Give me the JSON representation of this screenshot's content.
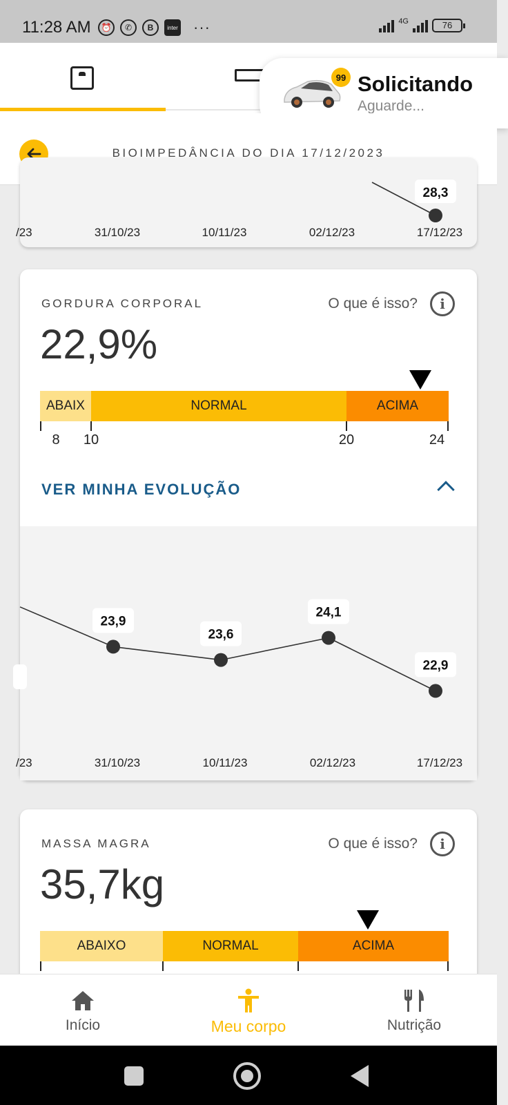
{
  "status_bar": {
    "time": "11:28 AM",
    "notif_icons": [
      "alarm-icon",
      "whatsapp-icon",
      "business-icon",
      "inter-icon"
    ],
    "inter_label": "inter",
    "more": "···",
    "network": "4G",
    "battery": "76"
  },
  "tabs": [
    {
      "icon": "scale-icon",
      "active": true
    },
    {
      "icon": "ruler-icon",
      "active": false
    }
  ],
  "ride_request": {
    "badge": "99",
    "title": "Solicitando",
    "subtitle": "Aguarde..."
  },
  "header": {
    "title": "BIOIMPEDÂNCIA DO DIA 17/12/2023"
  },
  "previous_chart": {
    "labels": [
      "/23",
      "31/10/23",
      "10/11/23",
      "02/12/23",
      "17/12/23"
    ],
    "last_value": "28,3"
  },
  "metrics": [
    {
      "label": "GORDURA CORPORAL",
      "help": "O que é isso?",
      "value": "22,9%",
      "ranges": [
        {
          "label": "ABAIX",
          "color": "#fde08a"
        },
        {
          "label": "NORMAL",
          "color": "#fbbc05"
        },
        {
          "label": "ACIMA",
          "color": "#fb8c00"
        }
      ],
      "scale": {
        "min": 8,
        "max": 24,
        "ticks": [
          "8",
          "10",
          "20",
          "24"
        ]
      },
      "current_value": 22.9,
      "evolution_link": "VER MINHA EVOLUÇÃO"
    },
    {
      "label": "MASSA MAGRA",
      "help": "O que é isso?",
      "value": "35,7kg",
      "ranges": [
        {
          "label": "ABAIXO",
          "color": "#fde08a"
        },
        {
          "label": "NORMAL",
          "color": "#fbbc05"
        },
        {
          "label": "ACIMA",
          "color": "#fb8c00"
        }
      ]
    }
  ],
  "chart_data": {
    "type": "line",
    "x": [
      "/23",
      "31/10/23",
      "10/11/23",
      "02/12/23",
      "17/12/23"
    ],
    "values": [
      null,
      23.9,
      23.6,
      24.1,
      22.9
    ],
    "point_labels": [
      "",
      "23,9",
      "23,6",
      "24,1",
      "22,9"
    ],
    "ylim": [
      21,
      26
    ],
    "grid": false
  },
  "bottom_nav": [
    {
      "label": "Início",
      "icon": "home-icon",
      "active": false
    },
    {
      "label": "Meu corpo",
      "icon": "body-icon",
      "active": true
    },
    {
      "label": "Nutrição",
      "icon": "cutlery-icon",
      "active": false
    }
  ],
  "colors": {
    "accent": "#fbbc05",
    "link": "#1a5c8a",
    "below": "#fde08a",
    "normal": "#fbbc05",
    "above": "#fb8c00"
  }
}
